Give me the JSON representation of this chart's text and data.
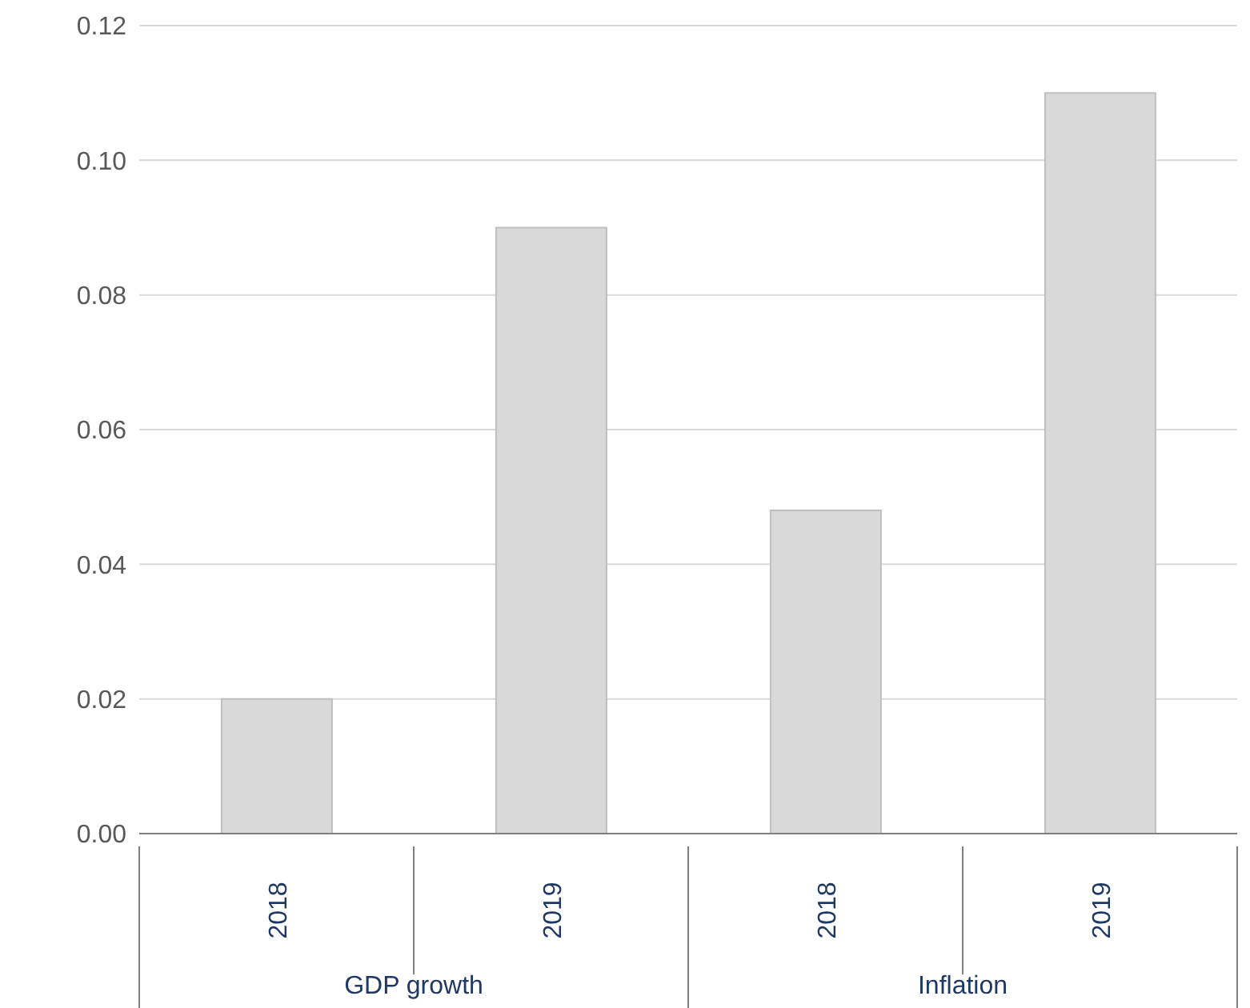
{
  "chart_data": {
    "type": "bar",
    "categories": [
      "2018",
      "2019",
      "2018",
      "2019"
    ],
    "values": [
      0.02,
      0.09,
      0.048,
      0.11
    ],
    "color": "#d9d9d9",
    "ylim": [
      0,
      0.12
    ],
    "yticks": [
      {
        "value": 0,
        "label": "0.00"
      },
      {
        "value": 0.02,
        "label": "0.02"
      },
      {
        "value": 0.04,
        "label": "0.04"
      },
      {
        "value": 0.06,
        "label": "0.06"
      },
      {
        "value": 0.08,
        "label": "0.08"
      },
      {
        "value": 0.1,
        "label": "0.10"
      },
      {
        "value": 0.12,
        "label": "0.12"
      }
    ],
    "grid": "y",
    "annotations": [
      "GDP growth",
      "Inflation"
    ]
  }
}
